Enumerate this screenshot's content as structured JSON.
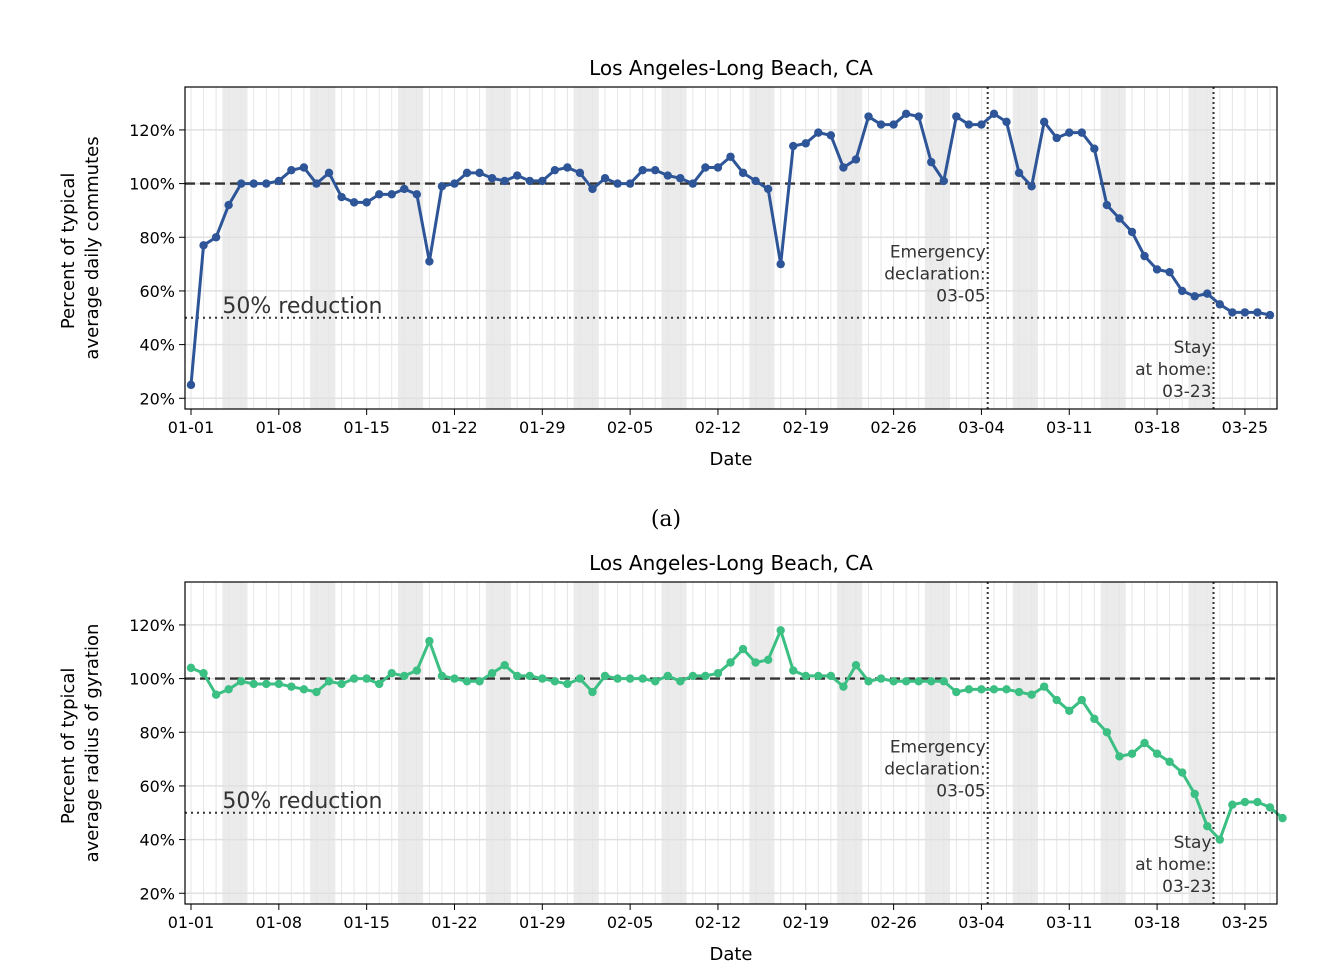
{
  "figure_captions": [
    "(a)"
  ],
  "chart_data": [
    {
      "type": "line",
      "title": "Los Angeles-Long Beach, CA",
      "xlabel": "Date",
      "ylabel": [
        "Percent of typical",
        "average daily commutes"
      ],
      "x_tick_labels": [
        "01-01",
        "01-08",
        "01-15",
        "01-22",
        "01-29",
        "02-05",
        "02-12",
        "02-19",
        "02-26",
        "03-04",
        "03-11",
        "03-18",
        "03-25"
      ],
      "y_tick_labels": [
        "20%",
        "40%",
        "60%",
        "80%",
        "100%",
        "120%"
      ],
      "y_ticks": [
        20,
        40,
        60,
        80,
        100,
        120
      ],
      "ylim": [
        16,
        136
      ],
      "x_range": [
        "2020-01-01",
        "2020-03-27"
      ],
      "grid": true,
      "weekend_shading": true,
      "line_color": "#2d5597",
      "reference_lines": [
        {
          "value": 100,
          "style": "dashed",
          "label": ""
        },
        {
          "value": 50,
          "style": "dotted",
          "label": "50% reduction"
        }
      ],
      "event_lines": [
        {
          "date": "2020-03-05",
          "label": [
            "Emergency",
            "declaration:",
            "03-05"
          ]
        },
        {
          "date": "2020-03-23",
          "label": [
            "Stay",
            "at home:",
            "03-23"
          ]
        }
      ],
      "series": [
        {
          "start_date": "2020-01-01",
          "values": [
            25,
            77,
            80,
            92,
            100,
            100,
            100,
            101,
            105,
            106,
            100,
            104,
            95,
            93,
            93,
            96,
            96,
            98,
            96,
            71,
            99,
            100,
            104,
            104,
            102,
            101,
            103,
            101,
            101,
            105,
            106,
            104,
            98,
            102,
            100,
            100,
            105,
            105,
            103,
            102,
            100,
            106,
            106,
            110,
            104,
            101,
            98,
            70,
            114,
            115,
            119,
            118,
            106,
            109,
            125,
            122,
            122,
            126,
            125,
            108,
            101,
            125,
            122,
            122,
            126,
            123,
            104,
            99,
            123,
            117,
            119,
            119,
            113,
            92,
            87,
            82,
            73,
            68,
            67,
            60,
            58,
            59,
            55,
            52,
            52,
            52,
            51
          ]
        }
      ]
    },
    {
      "type": "line",
      "title": "Los Angeles-Long Beach, CA",
      "xlabel": "Date",
      "ylabel": [
        "Percent of typical",
        "average radius of gyration"
      ],
      "x_tick_labels": [
        "01-01",
        "01-08",
        "01-15",
        "01-22",
        "01-29",
        "02-05",
        "02-12",
        "02-19",
        "02-26",
        "03-04",
        "03-11",
        "03-18",
        "03-25"
      ],
      "y_tick_labels": [
        "20%",
        "40%",
        "60%",
        "80%",
        "100%",
        "120%"
      ],
      "y_ticks": [
        20,
        40,
        60,
        80,
        100,
        120
      ],
      "ylim": [
        16,
        136
      ],
      "x_range": [
        "2020-01-01",
        "2020-03-27"
      ],
      "grid": true,
      "weekend_shading": true,
      "line_color": "#3cbf83",
      "reference_lines": [
        {
          "value": 100,
          "style": "dashed",
          "label": ""
        },
        {
          "value": 50,
          "style": "dotted",
          "label": "50% reduction"
        }
      ],
      "event_lines": [
        {
          "date": "2020-03-05",
          "label": [
            "Emergency",
            "declaration:",
            "03-05"
          ]
        },
        {
          "date": "2020-03-23",
          "label": [
            "Stay",
            "at home:",
            "03-23"
          ]
        }
      ],
      "series": [
        {
          "start_date": "2020-01-01",
          "values": [
            104,
            102,
            94,
            96,
            99,
            98,
            98,
            98,
            97,
            96,
            95,
            99,
            98,
            100,
            100,
            98,
            102,
            101,
            103,
            114,
            101,
            100,
            99,
            99,
            102,
            105,
            101,
            101,
            100,
            99,
            98,
            100,
            95,
            101,
            100,
            100,
            100,
            99,
            101,
            99,
            101,
            101,
            102,
            106,
            111,
            106,
            107,
            118,
            103,
            101,
            101,
            101,
            97,
            105,
            99,
            100,
            99,
            99,
            99,
            99,
            99,
            95,
            96,
            96,
            96,
            96,
            95,
            94,
            97,
            92,
            88,
            92,
            85,
            80,
            71,
            72,
            76,
            72,
            69,
            65,
            57,
            45,
            40,
            53,
            54,
            54,
            52,
            48
          ]
        }
      ]
    }
  ]
}
